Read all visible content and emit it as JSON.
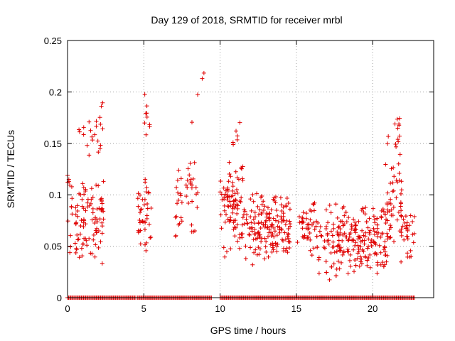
{
  "chart_data": {
    "type": "scatter",
    "title": "Day 129 of 2018, SRMTID for receiver mrbl",
    "xlabel": "GPS time / hours",
    "ylabel": "SRMTID / TECUs",
    "xlim": [
      0,
      24
    ],
    "ylim": [
      0,
      0.25
    ],
    "x_ticks": [
      "0",
      "5",
      "10",
      "15",
      "20"
    ],
    "x_tick_values": [
      0,
      5,
      10,
      15,
      20
    ],
    "y_ticks": [
      "0",
      "0.05",
      "0.1",
      "0.15",
      "0.2",
      "0.25"
    ],
    "y_tick_values": [
      0,
      0.05,
      0.1,
      0.15,
      0.2,
      0.25
    ],
    "grid": true,
    "marker": "plus",
    "color": "#e00000",
    "series": [
      {
        "name": "SRMTID",
        "clusters": [
          {
            "x_range": [
              0.0,
              0.3
            ],
            "y_range": [
              0.035,
              0.13
            ],
            "count": 14
          },
          {
            "x_range": [
              0.5,
              2.4
            ],
            "y_range": [
              0.03,
              0.125
            ],
            "count": 95
          },
          {
            "x_range": [
              0.6,
              2.4
            ],
            "y_range": [
              0.13,
              0.195
            ],
            "count": 22
          },
          {
            "x_range": [
              4.6,
              5.5
            ],
            "y_range": [
              0.035,
              0.125
            ],
            "count": 40
          },
          {
            "x_range": [
              5.0,
              5.4
            ],
            "y_range": [
              0.14,
              0.205
            ],
            "count": 9
          },
          {
            "x_range": [
              6.9,
              7.5
            ],
            "y_range": [
              0.04,
              0.135
            ],
            "count": 18
          },
          {
            "x_range": [
              7.7,
              8.6
            ],
            "y_range": [
              0.04,
              0.14
            ],
            "count": 24
          },
          {
            "x_range": [
              8.1,
              9.0
            ],
            "y_range": [
              0.16,
              0.225
            ],
            "count": 4
          },
          {
            "x_range": [
              10.0,
              11.5
            ],
            "y_range": [
              0.03,
              0.14
            ],
            "count": 90
          },
          {
            "x_range": [
              10.3,
              11.3
            ],
            "y_range": [
              0.14,
              0.175
            ],
            "count": 6
          },
          {
            "x_range": [
              11.5,
              14.6
            ],
            "y_range": [
              0.025,
              0.105
            ],
            "count": 170
          },
          {
            "x_range": [
              15.0,
              16.2
            ],
            "y_range": [
              0.03,
              0.1
            ],
            "count": 40
          },
          {
            "x_range": [
              16.2,
              21.0
            ],
            "y_range": [
              0.01,
              0.095
            ],
            "count": 270
          },
          {
            "x_range": [
              20.8,
              21.9
            ],
            "y_range": [
              0.03,
              0.165
            ],
            "count": 50
          },
          {
            "x_range": [
              21.4,
              21.8
            ],
            "y_range": [
              0.14,
              0.183
            ],
            "count": 8
          },
          {
            "x_range": [
              21.8,
              22.8
            ],
            "y_range": [
              0.025,
              0.085
            ],
            "count": 30
          }
        ],
        "zero_band": [
          [
            0.0,
            4.5
          ],
          [
            4.6,
            9.5
          ],
          [
            10.0,
            22.8
          ]
        ]
      }
    ]
  }
}
